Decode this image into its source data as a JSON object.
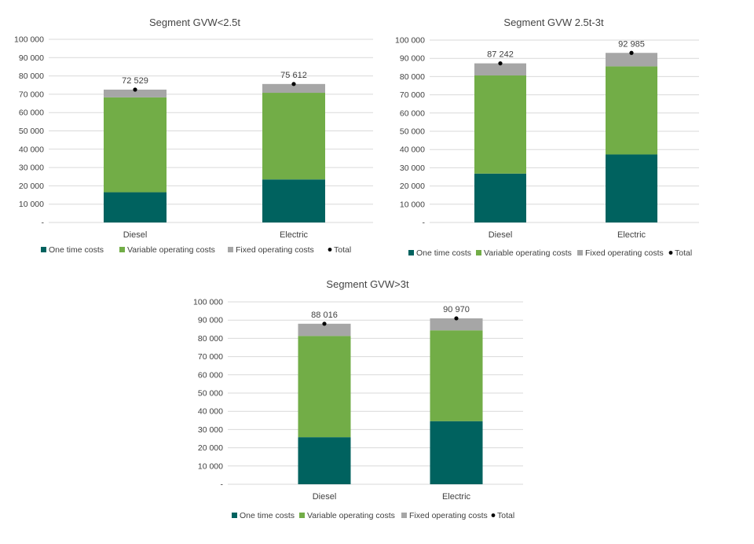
{
  "chart_data": [
    {
      "type": "bar",
      "stacked": true,
      "title": "Segment GVW<2.5t",
      "categories": [
        "Diesel",
        "Electric"
      ],
      "series": [
        {
          "name": "One time costs",
          "values": [
            16500,
            23500
          ]
        },
        {
          "name": "Variable operating costs",
          "values": [
            51800,
            47300
          ]
        },
        {
          "name": "Fixed operating costs",
          "values": [
            4229,
            4812
          ]
        }
      ],
      "totals": {
        "name": "Total",
        "values": [
          72529,
          75612
        ],
        "labels": [
          "72 529",
          "75 612"
        ]
      },
      "ylim": [
        0,
        100000
      ],
      "yticks": [
        "-",
        "10 000",
        "20 000",
        "30 000",
        "40 000",
        "50 000",
        "60 000",
        "70 000",
        "80 000",
        "90 000",
        "100 000"
      ],
      "grid": true,
      "legend": "bottom"
    },
    {
      "type": "bar",
      "stacked": true,
      "title": "Segment GVW 2.5t-3t",
      "categories": [
        "Diesel",
        "Electric"
      ],
      "series": [
        {
          "name": "One time costs",
          "values": [
            26800,
            37300
          ]
        },
        {
          "name": "Variable operating costs",
          "values": [
            53800,
            48300
          ]
        },
        {
          "name": "Fixed operating costs",
          "values": [
            6642,
            7385
          ]
        }
      ],
      "totals": {
        "name": "Total",
        "values": [
          87242,
          92985
        ],
        "labels": [
          "87 242",
          "92 985"
        ]
      },
      "ylim": [
        0,
        100000
      ],
      "yticks": [
        "-",
        "10 000",
        "20 000",
        "30 000",
        "40 000",
        "50 000",
        "60 000",
        "70 000",
        "80 000",
        "90 000",
        "100 000"
      ],
      "grid": true,
      "legend": "bottom"
    },
    {
      "type": "bar",
      "stacked": true,
      "title": "Segment GVW>3t",
      "categories": [
        "Diesel",
        "Electric"
      ],
      "series": [
        {
          "name": "One time costs",
          "values": [
            25800,
            34600
          ]
        },
        {
          "name": "Variable operating costs",
          "values": [
            55500,
            49800
          ]
        },
        {
          "name": "Fixed operating costs",
          "values": [
            6716,
            6570
          ]
        }
      ],
      "totals": {
        "name": "Total",
        "values": [
          88016,
          90970
        ],
        "labels": [
          "88 016",
          "90 970"
        ]
      },
      "ylim": [
        0,
        100000
      ],
      "yticks": [
        "-",
        "10 000",
        "20 000",
        "30 000",
        "40 000",
        "50 000",
        "60 000",
        "70 000",
        "80 000",
        "90 000",
        "100 000"
      ],
      "grid": true,
      "legend": "bottom"
    }
  ],
  "colors": {
    "one_time": "#00625f",
    "variable": "#72ad47",
    "fixed": "#a6a6a6",
    "total": "#000000"
  }
}
